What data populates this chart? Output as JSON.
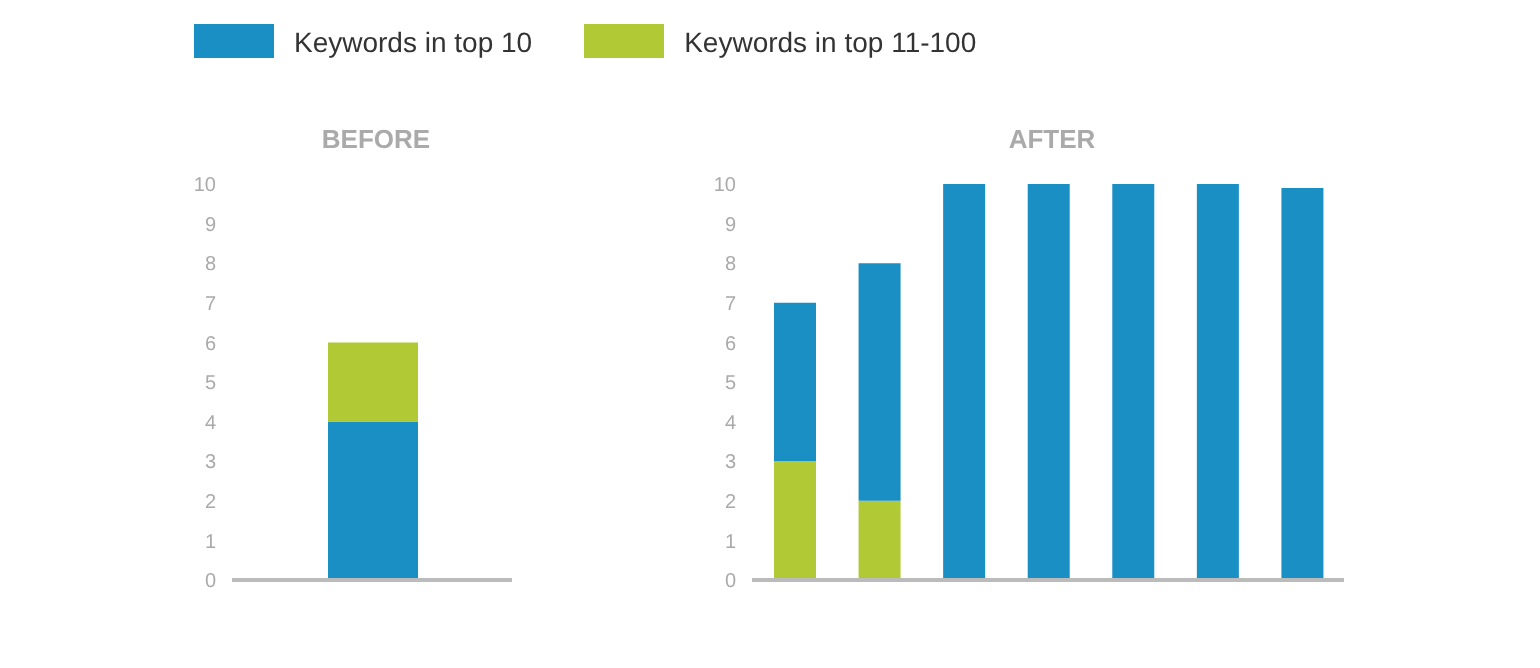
{
  "chart_data": [
    {
      "type": "bar",
      "title": "BEFORE",
      "categories": [
        null
      ],
      "stacked": true,
      "legend": "top",
      "tick_labels": "y",
      "grid": false,
      "ylim": [
        0,
        10
      ],
      "yticks": [
        0,
        1,
        2,
        3,
        4,
        5,
        6,
        7,
        8,
        9,
        10
      ],
      "series": [
        {
          "name": "Keywords in top 10",
          "color": "#1a8fc4",
          "values": [
            4
          ]
        },
        {
          "name": "Keywords in top 11-100",
          "color": "#b1c934",
          "values": [
            2
          ]
        }
      ]
    },
    {
      "type": "bar",
      "title": "AFTER",
      "categories": [
        null,
        null,
        null,
        null,
        null,
        null,
        null
      ],
      "stacked": true,
      "tick_labels": "y",
      "grid": false,
      "ylim": [
        0,
        10
      ],
      "yticks": [
        0,
        1,
        2,
        3,
        4,
        5,
        6,
        7,
        8,
        9,
        10
      ],
      "series": [
        {
          "color": "#b1c934",
          "values": [
            3,
            2,
            0,
            0,
            0,
            0,
            0
          ]
        },
        {
          "color": "#1a8fc4",
          "values": [
            4,
            6,
            10,
            10,
            10,
            10,
            9.9
          ]
        }
      ]
    }
  ]
}
